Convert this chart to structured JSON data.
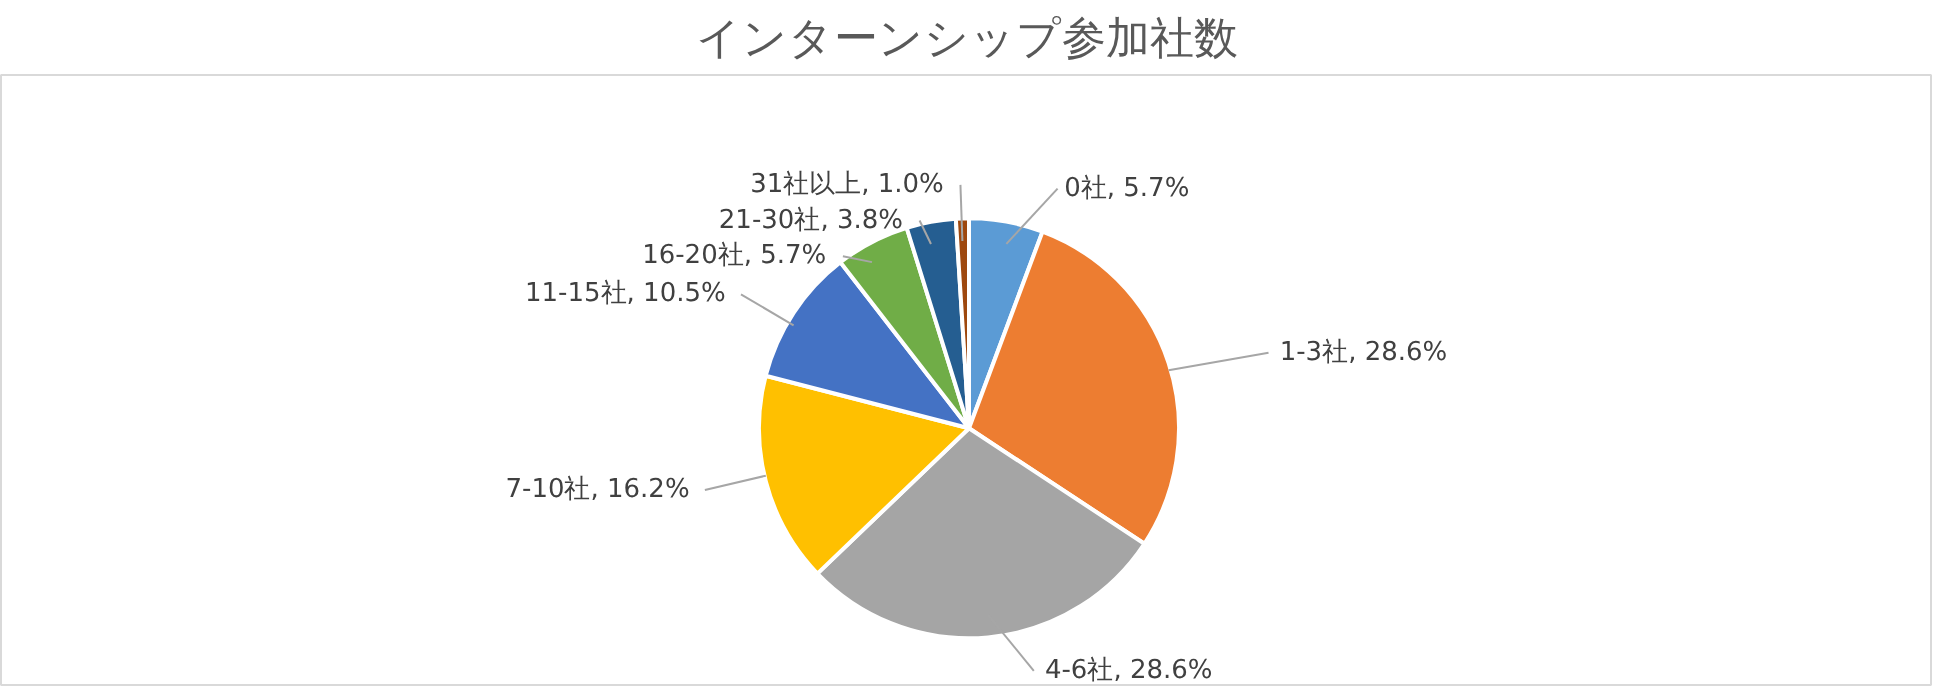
{
  "chart_data": {
    "type": "pie",
    "title": "インターンシップ参加社数",
    "categories": [
      "0社",
      "1-3社",
      "4-6社",
      "7-10社",
      "11-15社",
      "16-20社",
      "21-30社",
      "31社以上"
    ],
    "values": [
      5.7,
      28.6,
      28.6,
      16.2,
      10.5,
      5.7,
      3.8,
      1.0
    ],
    "colors": [
      "#5b9bd5",
      "#ed7d31",
      "#a5a5a5",
      "#ffc000",
      "#4472c4",
      "#70ad47",
      "#255e91",
      "#9e480e"
    ],
    "value_labels": [
      ", 5.7%",
      ", 28.6%",
      ", 28.6%",
      ", 16.2%",
      ", 10.5%",
      ", 5.7%",
      ", 3.8%",
      ", 1.0%"
    ]
  }
}
